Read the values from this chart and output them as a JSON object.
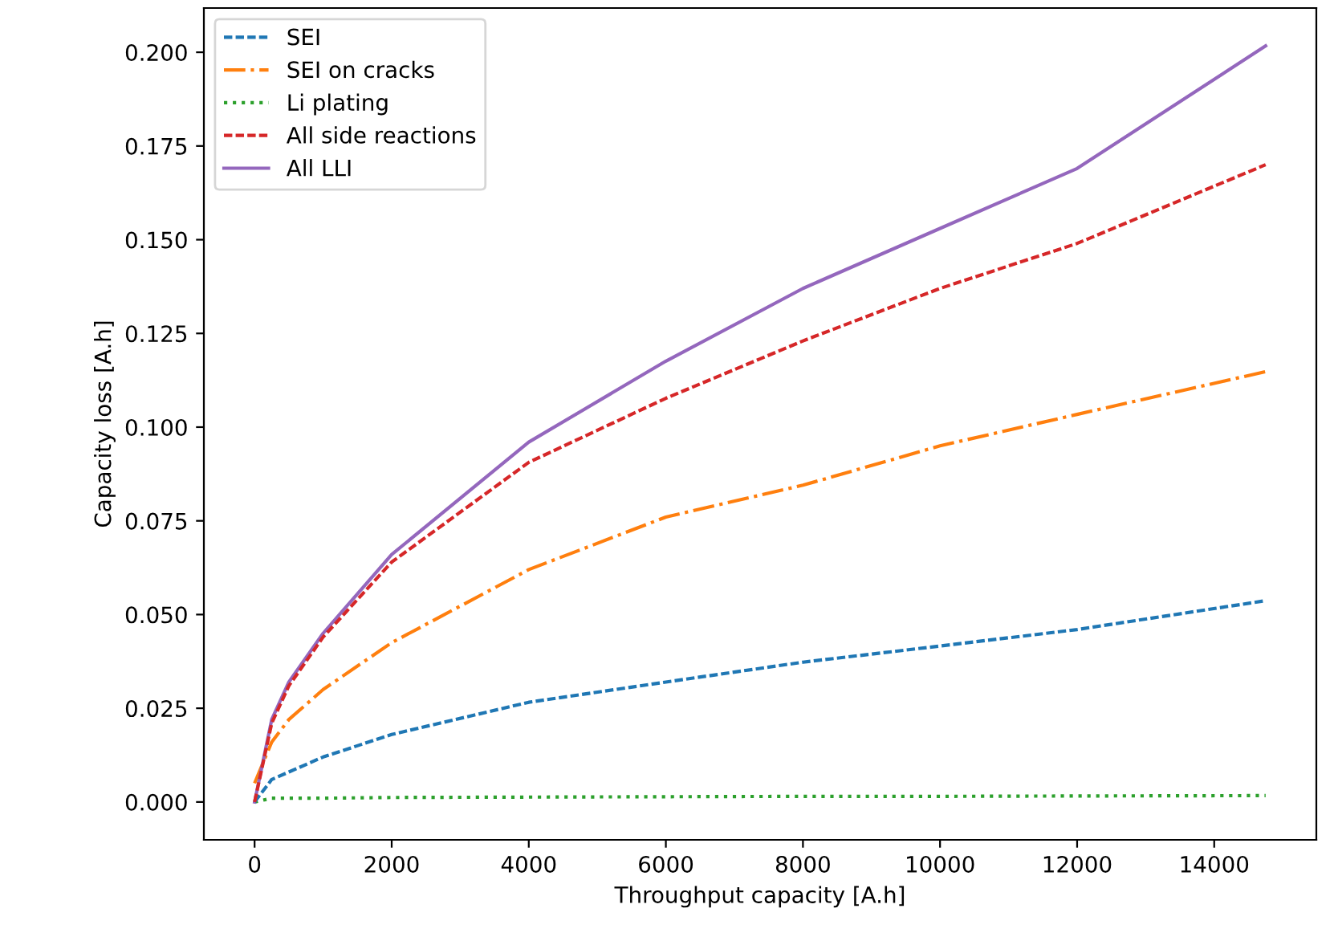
{
  "chart_data": {
    "type": "line",
    "xlabel": "Throughput capacity [A.h]",
    "ylabel": "Capacity loss [A.h]",
    "x": [
      0,
      250,
      500,
      1000,
      2000,
      4000,
      6000,
      8000,
      10000,
      12000,
      14750
    ],
    "series": [
      {
        "name": "SEI",
        "color": "#1f77b4",
        "line_style": "dashed",
        "values": [
          0,
          0.006,
          0.008,
          0.012,
          0.018,
          0.0266,
          0.032,
          0.0373,
          0.0416,
          0.046,
          0.0537
        ]
      },
      {
        "name": "SEI on cracks",
        "color": "#ff7f0e",
        "line_style": "dashdot",
        "values": [
          0.005,
          0.016,
          0.022,
          0.03,
          0.0425,
          0.062,
          0.076,
          0.0845,
          0.095,
          0.1034,
          0.1148
        ]
      },
      {
        "name": "Li plating",
        "color": "#2ca02c",
        "line_style": "dotted",
        "values": [
          0,
          0.001,
          0.001,
          0.001,
          0.0012,
          0.0013,
          0.0014,
          0.0015,
          0.0015,
          0.0016,
          0.0017
        ]
      },
      {
        "name": "All side reactions",
        "color": "#d62728",
        "line_style": "dashed",
        "values": [
          0,
          0.021,
          0.031,
          0.044,
          0.064,
          0.0906,
          0.1077,
          0.123,
          0.137,
          0.149,
          0.17
        ]
      },
      {
        "name": "All LLI",
        "color": "#9467bd",
        "line_style": "solid",
        "values": [
          0,
          0.022,
          0.032,
          0.045,
          0.066,
          0.096,
          0.1176,
          0.137,
          0.153,
          0.169,
          0.2017
        ]
      }
    ],
    "xlim": [
      -740,
      15490
    ],
    "ylim": [
      -0.0101,
      0.2118
    ],
    "xticks": [
      0,
      2000,
      4000,
      6000,
      8000,
      10000,
      12000,
      14000
    ],
    "yticks": [
      {
        "value": 0,
        "label": "0.000"
      },
      {
        "value": 0.025,
        "label": "0.025"
      },
      {
        "value": 0.05,
        "label": "0.050"
      },
      {
        "value": 0.075,
        "label": "0.075"
      },
      {
        "value": 0.1,
        "label": "0.100"
      },
      {
        "value": 0.125,
        "label": "0.125"
      },
      {
        "value": 0.15,
        "label": "0.150"
      },
      {
        "value": 0.175,
        "label": "0.175"
      },
      {
        "value": 0.2,
        "label": "0.200"
      }
    ],
    "legend": "top left",
    "grid": false,
    "marker": "none"
  }
}
